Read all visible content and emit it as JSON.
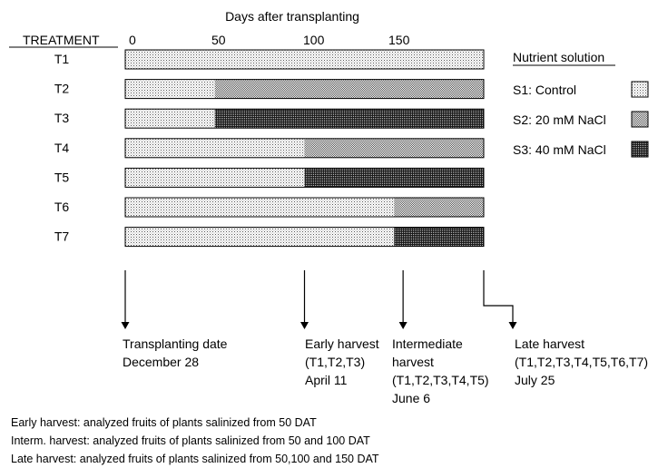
{
  "title": "Days after transplanting",
  "treatment_header": "TREATMENT",
  "axis": {
    "ticks": [
      "0",
      "50",
      "100",
      "150"
    ],
    "tick_values": [
      0,
      50,
      100,
      150
    ],
    "max_days": 200
  },
  "treatments": [
    {
      "label": "T1",
      "salinized_from": null,
      "solution": "S1"
    },
    {
      "label": "T2",
      "salinized_from": 50,
      "solution": "S2"
    },
    {
      "label": "T3",
      "salinized_from": 50,
      "solution": "S3"
    },
    {
      "label": "T4",
      "salinized_from": 100,
      "solution": "S2"
    },
    {
      "label": "T5",
      "salinized_from": 100,
      "solution": "S3"
    },
    {
      "label": "T6",
      "salinized_from": 150,
      "solution": "S2"
    },
    {
      "label": "T7",
      "salinized_from": 150,
      "solution": "S3"
    }
  ],
  "legend": {
    "title": "Nutrient solution",
    "items": [
      {
        "key": "S1",
        "label": "S1: Control",
        "pattern": "light-dots"
      },
      {
        "key": "S2",
        "label": "S2: 20 mM NaCl",
        "pattern": "medium-dots"
      },
      {
        "key": "S3",
        "label": "S3: 40 mM NaCl",
        "pattern": "dark-dots"
      }
    ]
  },
  "events": [
    {
      "lines": [
        "Transplanting date",
        "December 28"
      ],
      "day": 0
    },
    {
      "lines": [
        "Early harvest",
        "(T1,T2,T3)",
        "April 11"
      ],
      "day": 100
    },
    {
      "lines": [
        "Intermediate",
        "harvest",
        "(T1,T2,T3,T4,T5)",
        "June 6"
      ],
      "day": 155
    },
    {
      "lines": [
        "Late harvest",
        "(T1,T2,T3,T4,T5,T6,T7)",
        "July 25"
      ],
      "day": 200
    }
  ],
  "notes": [
    "Early harvest: analyzed fruits of plants salinized from 50 DAT",
    "Interm. harvest: analyzed fruits of plants salinized from 50 and 100 DAT",
    "Late harvest: analyzed fruits of plants salinized from 50,100 and 150 DAT"
  ]
}
